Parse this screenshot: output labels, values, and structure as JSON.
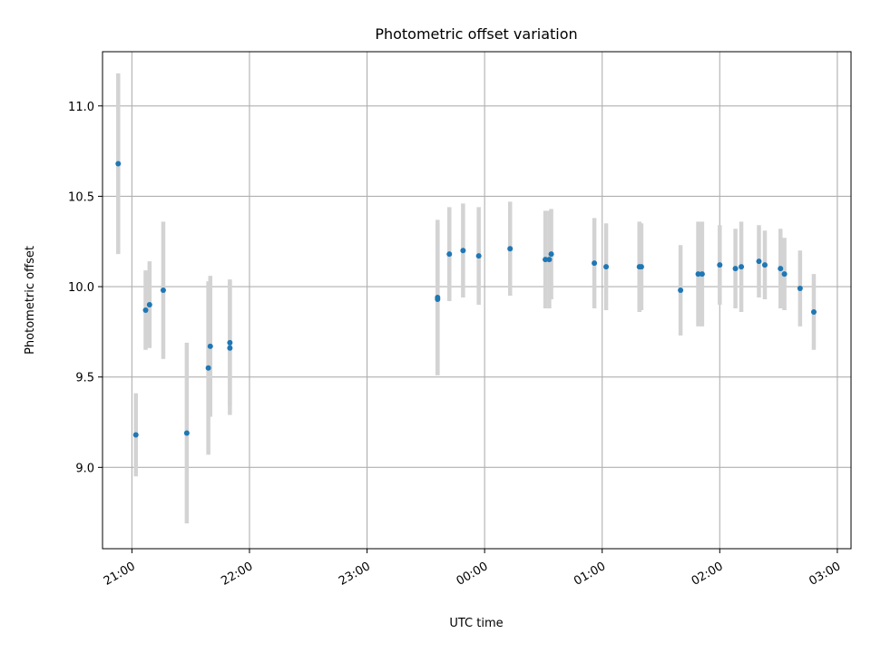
{
  "chart_data": {
    "type": "scatter",
    "title": "Photometric offset variation",
    "xlabel": "UTC time",
    "ylabel": "Photometric offset",
    "x_tick_labels": [
      "21:00",
      "22:00",
      "23:00",
      "00:00",
      "01:00",
      "02:00",
      "03:00"
    ],
    "y_tick_labels": [
      "9.0",
      "9.5",
      "10.0",
      "10.5",
      "11.0"
    ],
    "y_ticks": [
      9.0,
      9.5,
      10.0,
      10.5,
      11.0
    ],
    "xlim": [
      "20:45",
      "03:07"
    ],
    "ylim": [
      8.55,
      11.3
    ],
    "grid": true,
    "marker_color": "#1f77b4",
    "errorbar_color": "#d3d3d3",
    "series": [
      {
        "points": [
          {
            "x": "20:53",
            "y": 10.68,
            "err": 0.5
          },
          {
            "x": "21:02",
            "y": 9.18,
            "err": 0.23
          },
          {
            "x": "21:07",
            "y": 9.87,
            "err": 0.22
          },
          {
            "x": "21:09",
            "y": 9.9,
            "err": 0.24
          },
          {
            "x": "21:16",
            "y": 9.98,
            "err": 0.38
          },
          {
            "x": "21:28",
            "y": 9.19,
            "err": 0.5
          },
          {
            "x": "21:39",
            "y": 9.55,
            "err": 0.48
          },
          {
            "x": "21:40",
            "y": 9.67,
            "err": 0.39
          },
          {
            "x": "21:50",
            "y": 9.69,
            "err": 0.35
          },
          {
            "x": "21:50",
            "y": 9.66,
            "err": 0.37
          },
          {
            "x": "23:36",
            "y": 9.93,
            "err": 0.42
          },
          {
            "x": "23:36",
            "y": 9.94,
            "err": 0.43
          },
          {
            "x": "23:42",
            "y": 10.18,
            "err": 0.26
          },
          {
            "x": "23:49",
            "y": 10.2,
            "err": 0.26
          },
          {
            "x": "23:57",
            "y": 10.17,
            "err": 0.27
          },
          {
            "x": "00:13",
            "y": 10.21,
            "err": 0.26
          },
          {
            "x": "00:31",
            "y": 10.15,
            "err": 0.27
          },
          {
            "x": "00:33",
            "y": 10.15,
            "err": 0.27
          },
          {
            "x": "00:34",
            "y": 10.18,
            "err": 0.25
          },
          {
            "x": "00:56",
            "y": 10.13,
            "err": 0.25
          },
          {
            "x": "01:02",
            "y": 10.11,
            "err": 0.24
          },
          {
            "x": "01:19",
            "y": 10.11,
            "err": 0.25
          },
          {
            "x": "01:20",
            "y": 10.11,
            "err": 0.24
          },
          {
            "x": "01:40",
            "y": 9.98,
            "err": 0.25
          },
          {
            "x": "01:49",
            "y": 10.07,
            "err": 0.29
          },
          {
            "x": "01:51",
            "y": 10.07,
            "err": 0.29
          },
          {
            "x": "02:00",
            "y": 10.12,
            "err": 0.22
          },
          {
            "x": "02:08",
            "y": 10.1,
            "err": 0.22
          },
          {
            "x": "02:11",
            "y": 10.11,
            "err": 0.25
          },
          {
            "x": "02:20",
            "y": 10.14,
            "err": 0.2
          },
          {
            "x": "02:23",
            "y": 10.12,
            "err": 0.19
          },
          {
            "x": "02:31",
            "y": 10.1,
            "err": 0.22
          },
          {
            "x": "02:33",
            "y": 10.07,
            "err": 0.2
          },
          {
            "x": "02:41",
            "y": 9.99,
            "err": 0.21
          },
          {
            "x": "02:48",
            "y": 9.86,
            "err": 0.21
          }
        ]
      }
    ]
  }
}
